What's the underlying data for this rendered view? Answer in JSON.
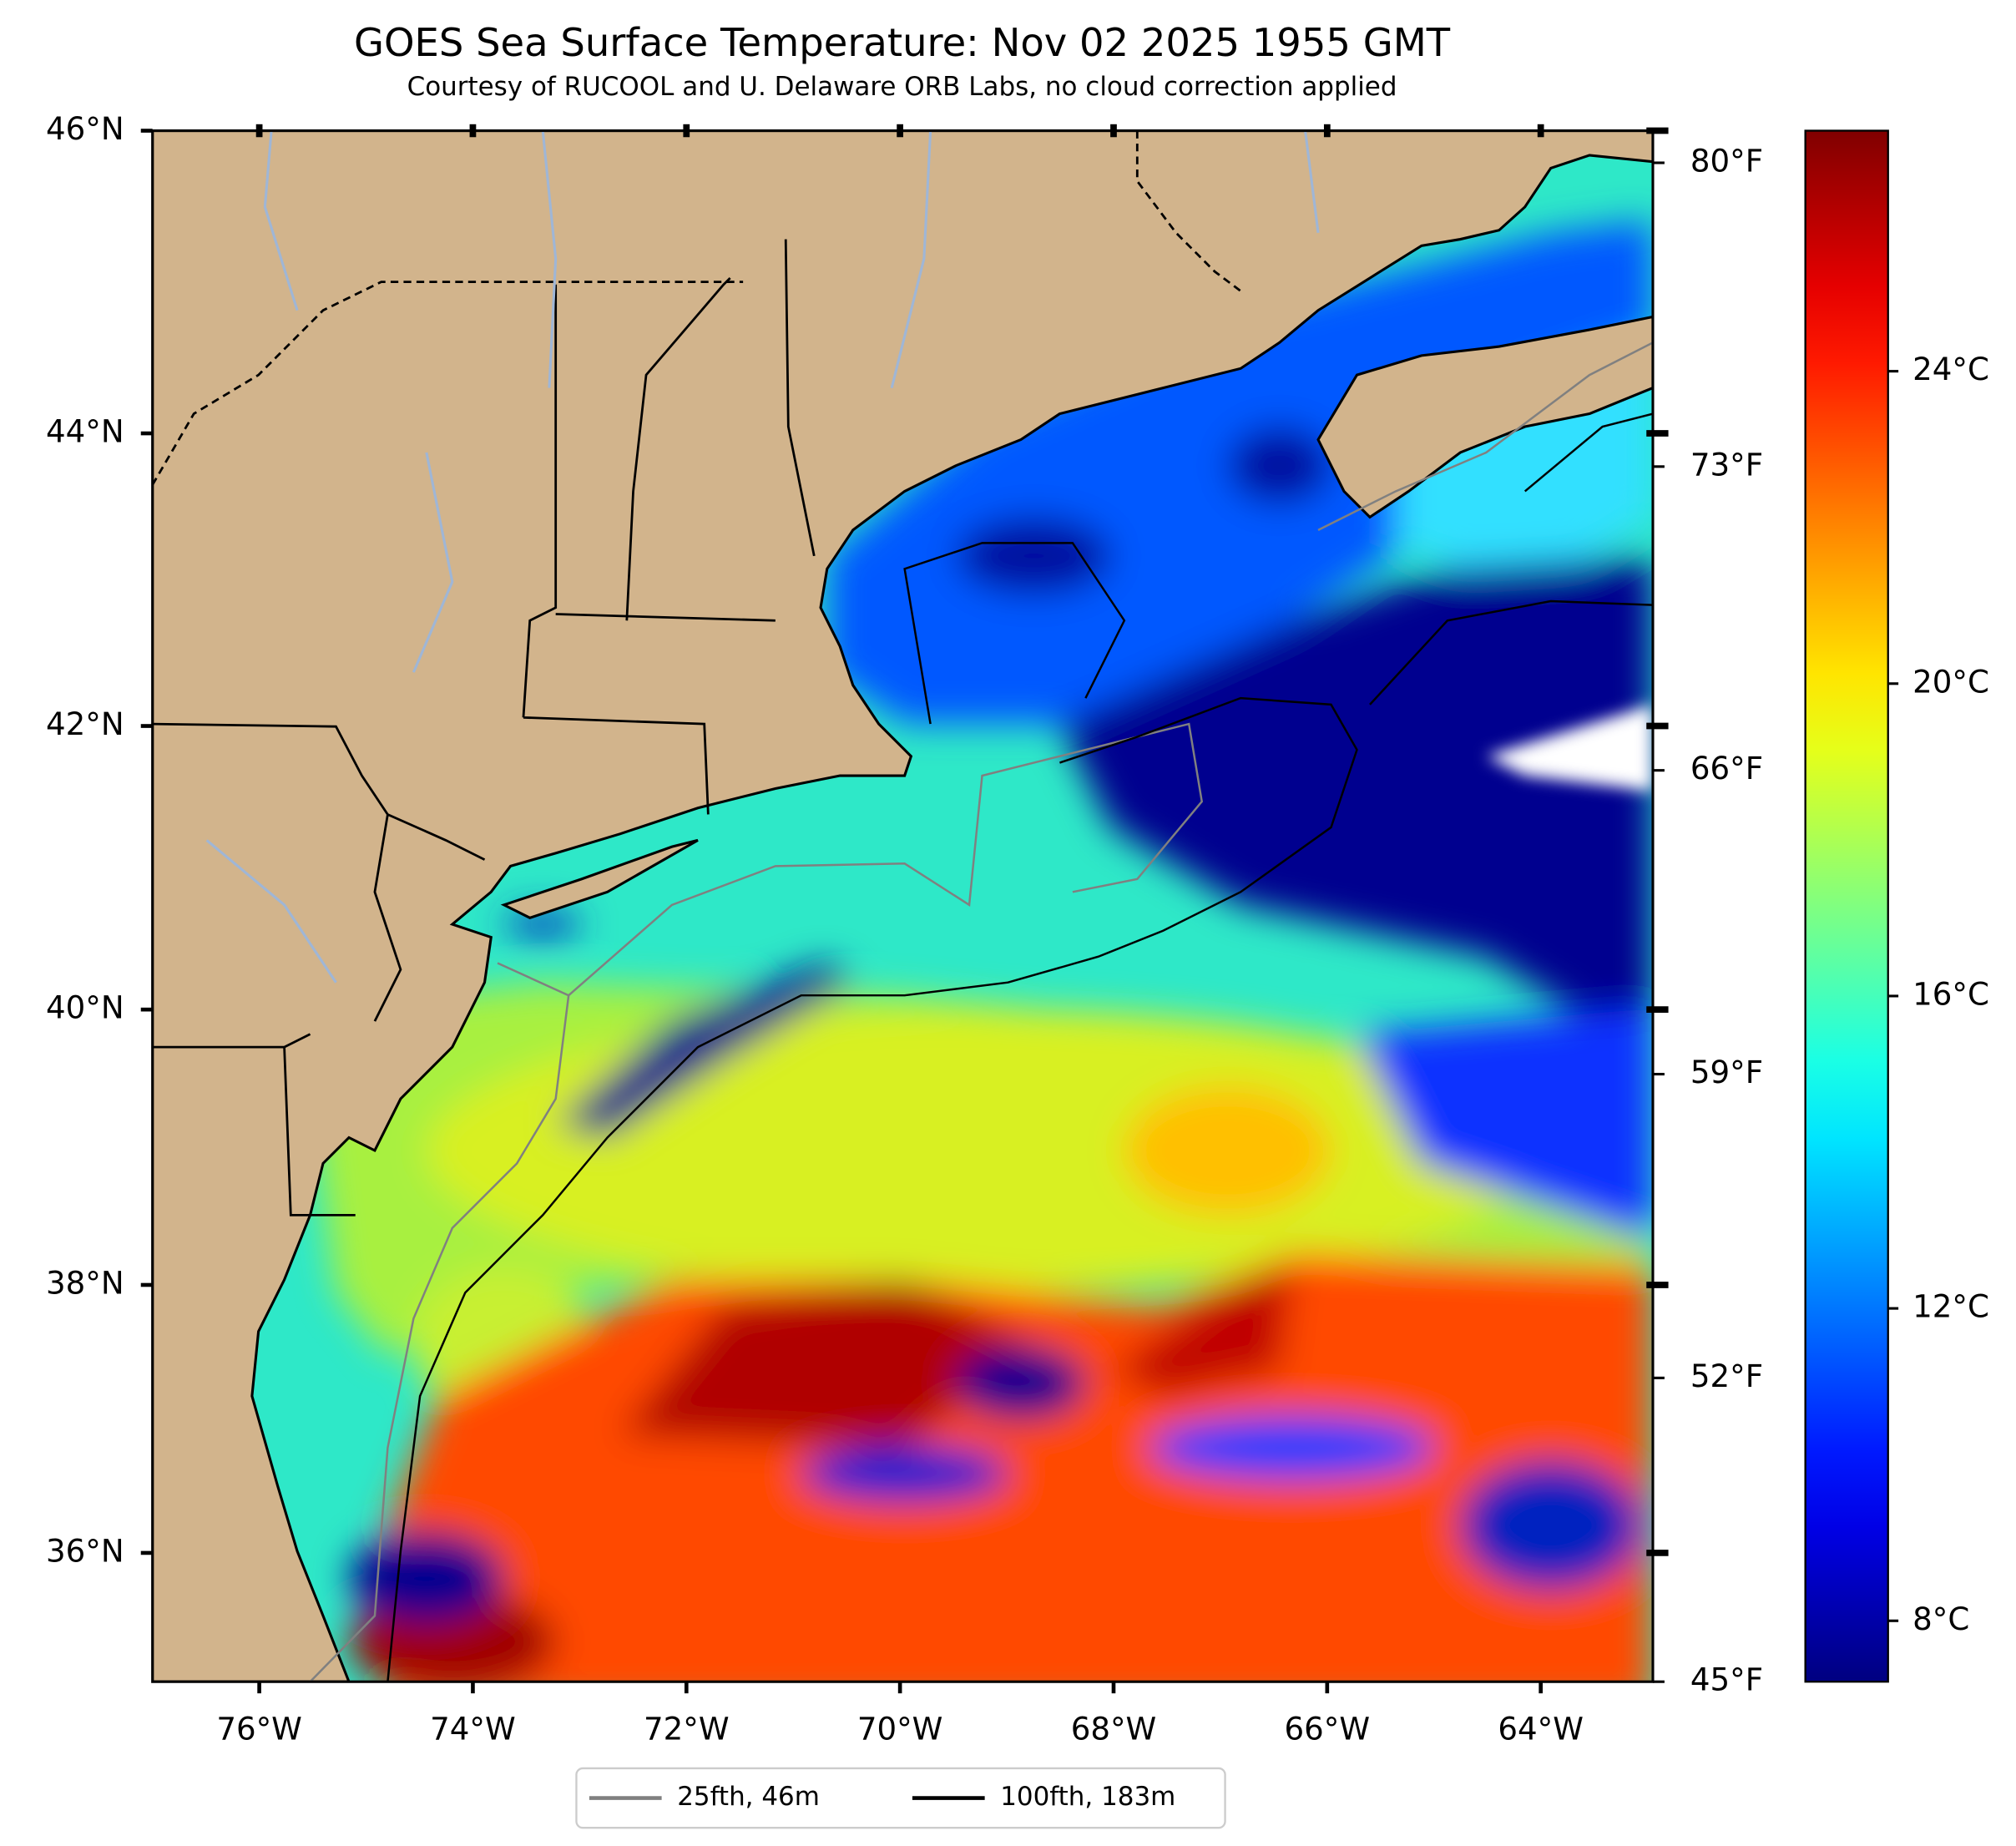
{
  "chart_data": {
    "type": "map",
    "title": "GOES Sea Surface Temperature: Nov 02 2025 1955 GMT",
    "subtitle": "Courtesy of RUCOOL and U. Delaware ORB Labs, no cloud correction applied",
    "projection": "mercator",
    "xlim": [
      -77,
      -62.95
    ],
    "xticks": [
      {
        "value": -76,
        "label": "76°W"
      },
      {
        "value": -74,
        "label": "74°W"
      },
      {
        "value": -72,
        "label": "72°W"
      },
      {
        "value": -70,
        "label": "70°W"
      },
      {
        "value": -68,
        "label": "68°W"
      },
      {
        "value": -66,
        "label": "66°W"
      },
      {
        "value": -64,
        "label": "64°W"
      }
    ],
    "ylim": [
      35.02,
      46
    ],
    "yticks": [
      {
        "value": 36,
        "label": "36°N"
      },
      {
        "value": 38,
        "label": "38°N"
      },
      {
        "value": 40,
        "label": "40°N"
      },
      {
        "value": 42,
        "label": "42°N"
      },
      {
        "value": 44,
        "label": "44°N"
      },
      {
        "value": 46,
        "label": "46°N"
      }
    ],
    "y2lim": [
      45,
      80.74
    ],
    "y2ticks": [
      {
        "value": 45,
        "label": "45°F"
      },
      {
        "value": 52,
        "label": "52°F"
      },
      {
        "value": 59,
        "label": "59°F"
      },
      {
        "value": 66,
        "label": "66°F"
      },
      {
        "value": 73,
        "label": "73°F"
      },
      {
        "value": 80,
        "label": "80°F"
      }
    ],
    "colorbar": {
      "colormap": "jet",
      "lim": [
        7.22,
        27.08
      ],
      "ticks": [
        {
          "value": 8,
          "label": "8°C"
        },
        {
          "value": 12,
          "label": "12°C"
        },
        {
          "value": 16,
          "label": "16°C"
        },
        {
          "value": 20,
          "label": "20°C"
        },
        {
          "value": 24,
          "label": "24°C"
        }
      ]
    },
    "legend": {
      "loc": "lower center",
      "entries": [
        {
          "name": "25fth, 46m",
          "color": "#808080"
        },
        {
          "name": "100fth, 183m",
          "color": "#000000"
        }
      ]
    }
  }
}
